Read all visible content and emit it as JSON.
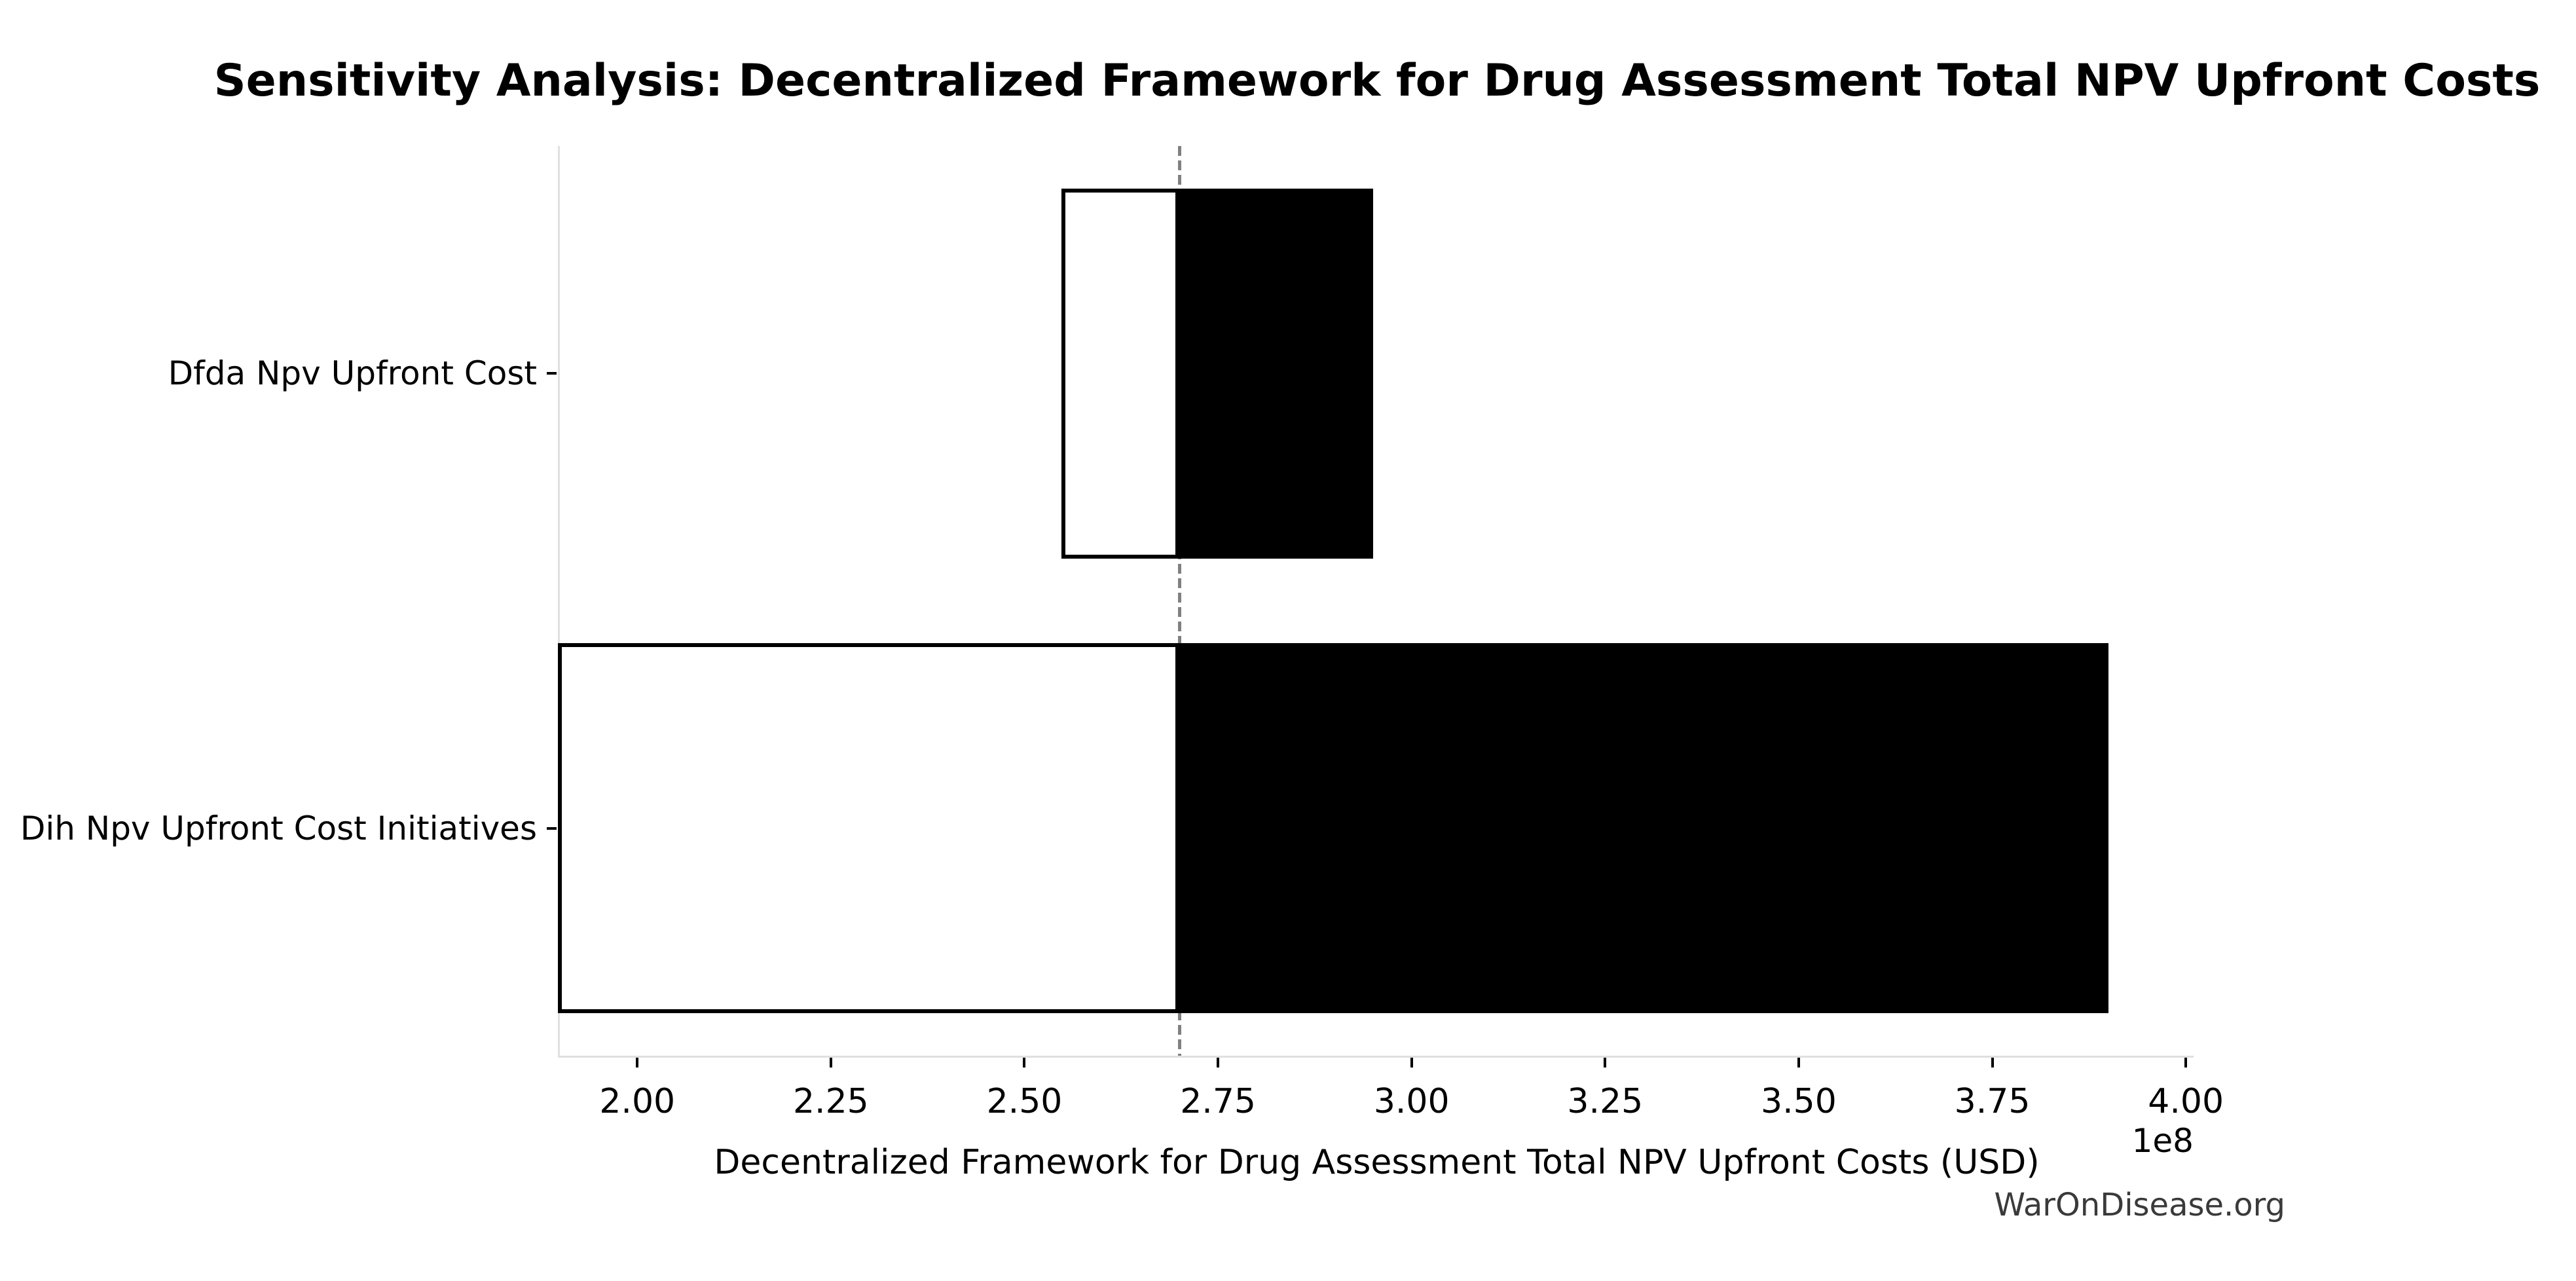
{
  "title": "Sensitivity Analysis: Decentralized Framework for Drug Assessment Total NPV Upfront Costs",
  "watermark": "WarOnDisease.org",
  "chart_data": {
    "type": "bar",
    "orientation": "horizontal",
    "subtype": "tornado-sensitivity",
    "title": "Sensitivity Analysis: Decentralized Framework for Drug Assessment Total NPV Upfront Costs",
    "xlabel": "Decentralized Framework for Drug Assessment Total NPV Upfront Costs (USD)",
    "ylabel": "",
    "categories": [
      "Dfda Npv Upfront Cost",
      "Dih Npv Upfront Cost Initiatives"
    ],
    "baseline": 270000000,
    "bars": [
      {
        "label": "Dfda Npv Upfront Cost",
        "low": 255000000,
        "high": 295000000
      },
      {
        "label": "Dih Npv Upfront Cost Initiatives",
        "low": 190000000,
        "high": 390000000
      }
    ],
    "xlim": [
      190000000,
      401000000
    ],
    "xticks": [
      200000000,
      225000000,
      250000000,
      275000000,
      300000000,
      325000000,
      350000000,
      375000000,
      400000000
    ],
    "xtick_labels": [
      "2.00",
      "2.25",
      "2.50",
      "2.75",
      "3.00",
      "3.25",
      "3.50",
      "3.75",
      "4.00"
    ],
    "offset_label": "1e8",
    "grid": false,
    "legend": false,
    "colors": {
      "low_fill": "#ffffff",
      "high_fill": "#000000",
      "bar_edge": "#000000",
      "baseline_line": "#808080",
      "spine": "#e0e0e0",
      "tick_mark": "#000000",
      "text": "#000000",
      "watermark_text": "#3a3a3a"
    }
  }
}
